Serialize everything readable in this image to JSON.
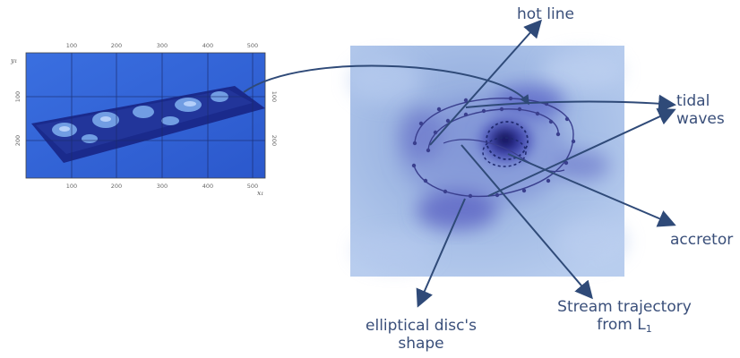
{
  "labels": {
    "hot_line": "hot line",
    "tidal_waves_line1": "tidal",
    "tidal_waves_line2": "waves",
    "accretor": "accretor",
    "stream_line1": "Stream trajectory",
    "stream_line2_prefix": "from L",
    "stream_line2_subscript": "1",
    "disc_line1": "elliptical disc's",
    "disc_line2": "shape"
  },
  "inset_plot": {
    "x_ticks_top": [
      "100",
      "200",
      "300",
      "400",
      "500"
    ],
    "x_ticks_bottom": [
      "100",
      "200",
      "300",
      "400",
      "500"
    ],
    "y_ticks_left": [
      "100",
      "200"
    ],
    "y_ticks_right": [
      "100",
      "200"
    ],
    "y_axis_label": "y₁",
    "x_axis_label": "x₁"
  },
  "colors": {
    "label_text": "#3a4f7a",
    "arrow": "#2f4a78",
    "panel_bg": "#9db4de",
    "disc_core": "#1c1e78",
    "inset_bg": "#2f5fd6"
  }
}
